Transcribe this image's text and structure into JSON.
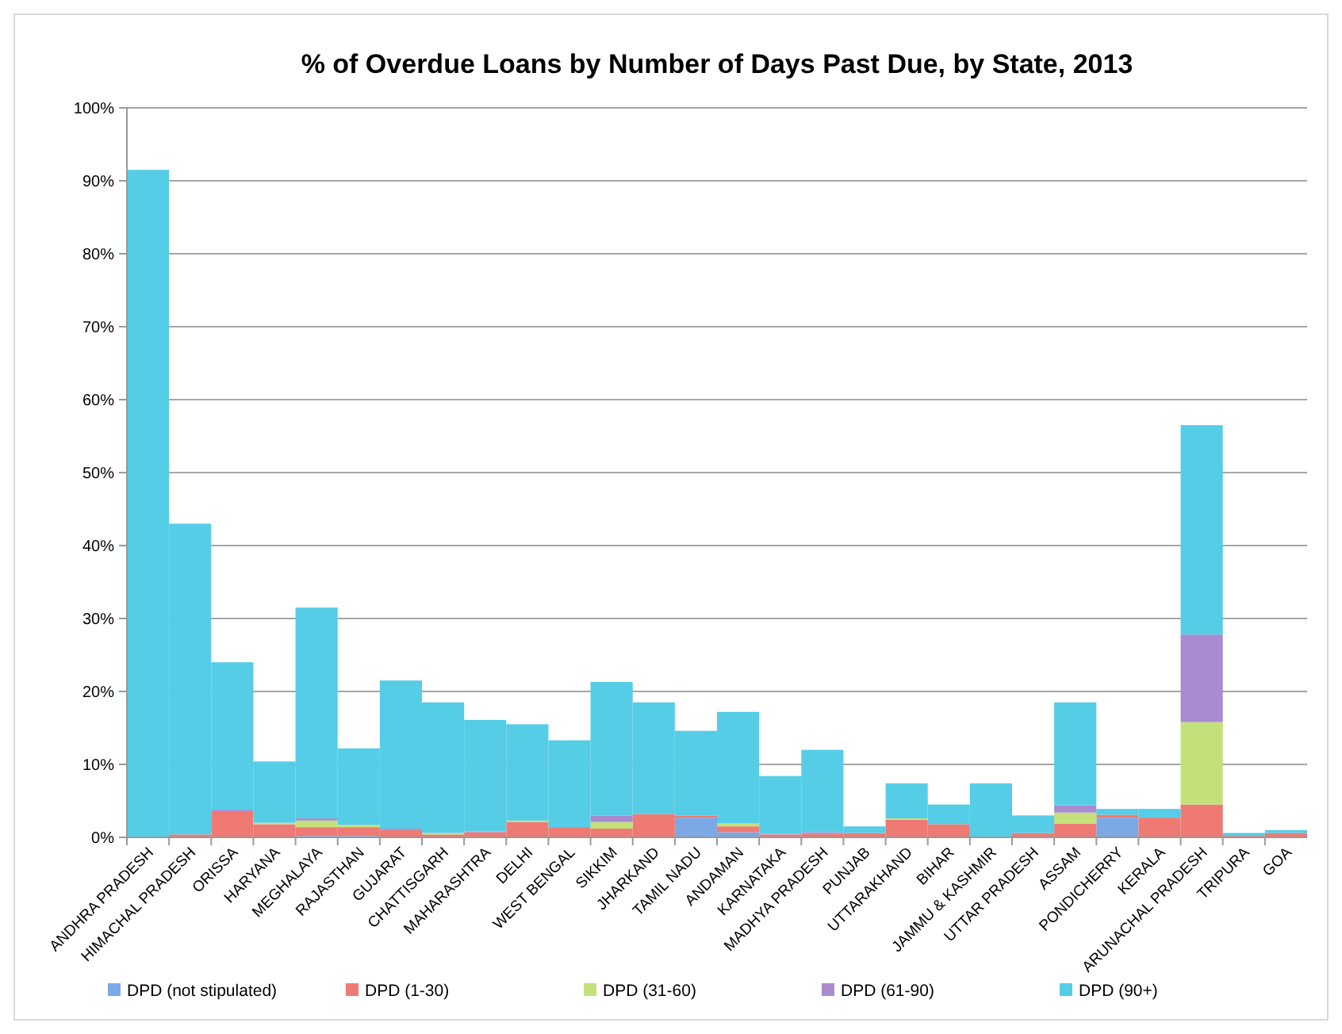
{
  "chart_data": {
    "type": "bar",
    "title": "% of Overdue Loans by Number of Days Past Due, by State, 2013",
    "categories": [
      "ANDHRA PRADESH",
      "HIMACHAL PRADESH",
      "ORISSA",
      "HARYANA",
      "MEGHALAYA",
      "RAJASTHAN",
      "GUJARAT",
      "CHATTISGARH",
      "MAHARASHTRA",
      "DELHI",
      "WEST BENGAL",
      "SIKKIM",
      "JHARKAND",
      "TAMIL NADU",
      "ANDAMAN",
      "KARNATAKA",
      "MADHYA PRADESH",
      "PUNJAB",
      "UTTARAKHAND",
      "BIHAR",
      "JAMMU & KASHMIR",
      "UTTAR PRADESH",
      "ASSAM",
      "PONDICHERRY",
      "KERALA",
      "ARUNACHAL PRADESH",
      "TRIPURA",
      "GOA"
    ],
    "stacked": true,
    "series": [
      {
        "name": "DPD (not stipulated)",
        "color": "#7aa9e6",
        "values": [
          0,
          0,
          0,
          0,
          0.2,
          0.2,
          0,
          0,
          0,
          0,
          0,
          0,
          0,
          2.7,
          0.7,
          0,
          0,
          0,
          0,
          0,
          0,
          0,
          0,
          2.7,
          0,
          0,
          0,
          0
        ]
      },
      {
        "name": "DPD (1-30)",
        "color": "#ee7a73",
        "values": [
          0,
          0.4,
          3.6,
          1.8,
          1.2,
          1.2,
          1.0,
          0.4,
          0.7,
          2.1,
          1.4,
          1.2,
          3.2,
          0.3,
          0.8,
          0.4,
          0.5,
          0.6,
          2.4,
          1.8,
          0,
          0.6,
          1.9,
          0.4,
          2.7,
          4.5,
          0.2,
          0.6
        ]
      },
      {
        "name": "DPD (31-60)",
        "color": "#c4e07a",
        "values": [
          0,
          0,
          0,
          0.2,
          0.9,
          0.3,
          0,
          0.2,
          0,
          0.2,
          0,
          0.9,
          0,
          0,
          0.4,
          0,
          0,
          0,
          0.2,
          0,
          0,
          0,
          1.5,
          0,
          0,
          11.3,
          0,
          0
        ]
      },
      {
        "name": "DPD (61-90)",
        "color": "#a98bd0",
        "values": [
          0,
          0,
          0.2,
          0,
          0.3,
          0,
          0.2,
          0,
          0.1,
          0,
          0,
          0.9,
          0,
          0,
          0,
          0.1,
          0.2,
          0,
          0,
          0,
          0,
          0,
          1.0,
          0,
          0,
          12.0,
          0,
          0
        ]
      },
      {
        "name": "DPD (90+)",
        "color": "#55cde6",
        "values": [
          91.5,
          42.6,
          20.2,
          8.4,
          28.9,
          10.5,
          20.3,
          17.9,
          15.3,
          13.2,
          11.9,
          18.3,
          15.3,
          11.6,
          15.3,
          7.9,
          11.3,
          0.9,
          4.8,
          2.7,
          7.4,
          2.4,
          14.1,
          0.8,
          1.2,
          28.7,
          0.4,
          0.4
        ]
      }
    ],
    "ylim": [
      0,
      100
    ],
    "yticks": [
      {
        "value": 0,
        "label": "0%"
      },
      {
        "value": 10,
        "label": "10%"
      },
      {
        "value": 20,
        "label": "20%"
      },
      {
        "value": 30,
        "label": "30%"
      },
      {
        "value": 40,
        "label": "40%"
      },
      {
        "value": 50,
        "label": "50%"
      },
      {
        "value": 60,
        "label": "60%"
      },
      {
        "value": 70,
        "label": "70%"
      },
      {
        "value": 80,
        "label": "80%"
      },
      {
        "value": 90,
        "label": "90%"
      },
      {
        "value": 100,
        "label": "100%"
      }
    ],
    "grid": "y",
    "legend": "bottom"
  }
}
